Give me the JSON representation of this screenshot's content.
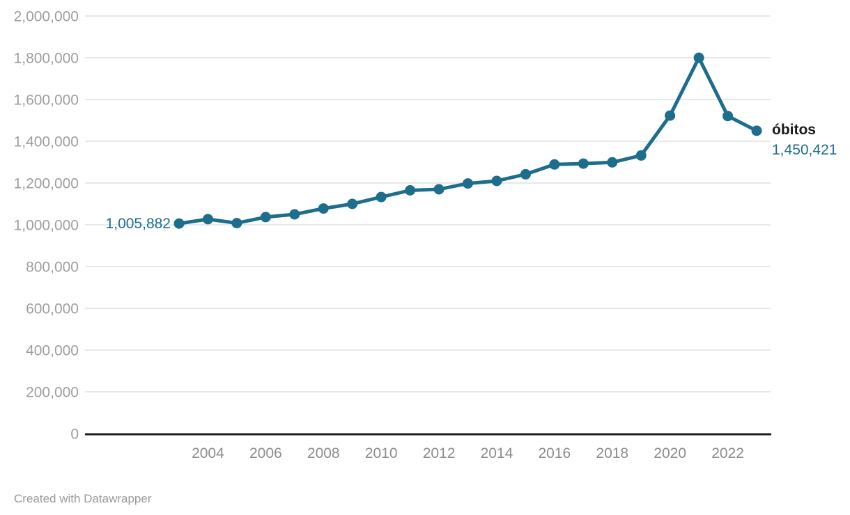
{
  "chart_data": {
    "type": "line",
    "title": "",
    "xlabel": "",
    "ylabel": "",
    "ylim": [
      0,
      2000000
    ],
    "grid": "horizontal",
    "legend_position": "right-of-last-point",
    "series": [
      {
        "name": "óbitos",
        "x": [
          2003,
          2004,
          2005,
          2006,
          2007,
          2008,
          2009,
          2010,
          2011,
          2012,
          2013,
          2014,
          2015,
          2016,
          2017,
          2018,
          2019,
          2020,
          2021,
          2022,
          2023
        ],
        "values": [
          1005882,
          1027000,
          1008000,
          1037000,
          1050000,
          1078000,
          1100000,
          1133000,
          1165000,
          1170000,
          1198000,
          1210000,
          1242000,
          1289000,
          1293000,
          1299000,
          1332000,
          1523000,
          1800000,
          1521000,
          1450421
        ]
      }
    ],
    "y_ticks": {
      "values": [
        0,
        200000,
        400000,
        600000,
        800000,
        1000000,
        1200000,
        1400000,
        1600000,
        1800000,
        2000000
      ],
      "labels": [
        "0",
        "200,000",
        "400,000",
        "600,000",
        "800,000",
        "1,000,000",
        "1,200,000",
        "1,400,000",
        "1,600,000",
        "1,800,000",
        "2,000,000"
      ]
    },
    "x_ticks": [
      {
        "x": 2004,
        "label": "2004"
      },
      {
        "x": 2006,
        "label": "2006"
      },
      {
        "x": 2008,
        "label": "2008"
      },
      {
        "x": 2010,
        "label": "2010"
      },
      {
        "x": 2012,
        "label": "2012"
      },
      {
        "x": 2014,
        "label": "2014"
      },
      {
        "x": 2016,
        "label": "2016"
      },
      {
        "x": 2018,
        "label": "2018"
      },
      {
        "x": 2020,
        "label": "2020"
      },
      {
        "x": 2022,
        "label": "2022"
      }
    ],
    "annotations": {
      "first_value_label": "1,005,882",
      "series_label": "óbitos",
      "last_value_label": "1,450,421"
    },
    "colors": {
      "line": "#1D6D8C",
      "value_label": "#1D6D8C",
      "series_label": "#1A1A1A",
      "y_tick_label": "#9E9E9E",
      "x_tick_label": "#8C8C8C",
      "gridline": "#E8E8E8",
      "baseline": "#1D1D1D",
      "footer": "#9B9B9B"
    }
  },
  "footer": {
    "text": "Created with Datawrapper"
  }
}
